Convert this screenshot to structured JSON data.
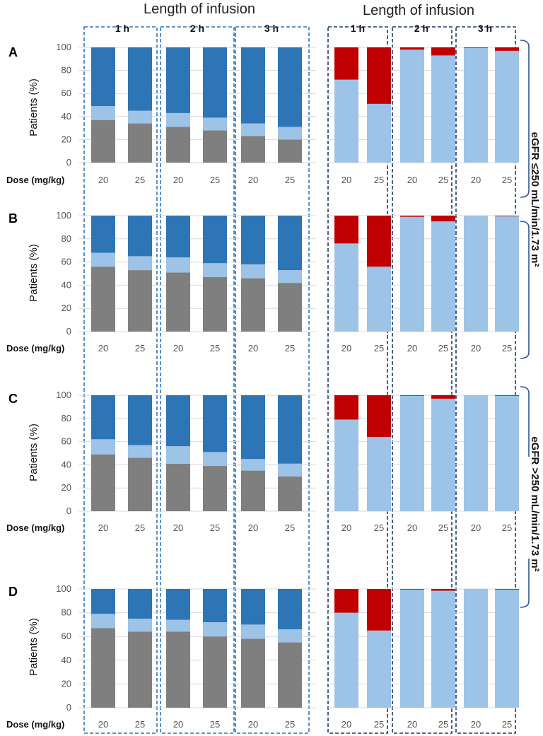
{
  "headings": {
    "left": "Length of infusion",
    "right": "Length of infusion"
  },
  "groups": [
    "1 h",
    "2 h",
    "3 h"
  ],
  "doses": [
    "20",
    "25"
  ],
  "y_label": "Patients (%)",
  "dose_label": "Dose (mg/kg)",
  "y_ticks": [
    "0",
    "20",
    "40",
    "60",
    "80",
    "100"
  ],
  "side_labels": {
    "top": "eGFR ≤250 mL/min/1.73 m²",
    "bottom": "eGFR >250 mL/min/1.73 m²"
  },
  "colors": {
    "gray": "#7f7f7f",
    "light_blue": "#9dc3e6",
    "dark_blue": "#2e75b6",
    "red": "#c00000",
    "box_blue": "#2e75b6",
    "box_dark": "#1f3864",
    "grid": "#d9d9d9"
  },
  "chart_data": [
    {
      "panel": "A",
      "type": "bar",
      "stacked": true,
      "side": "left",
      "categories": [
        "1 h / 20",
        "1 h / 25",
        "2 h / 20",
        "2 h / 25",
        "3 h / 20",
        "3 h / 25"
      ],
      "ylabel": "Patients (%)",
      "xlabel": "Dose (mg/kg)",
      "ylim": [
        0,
        100
      ],
      "series": [
        {
          "name": "gray",
          "color": "#7f7f7f",
          "values": [
            37,
            34,
            31,
            28,
            23,
            20
          ]
        },
        {
          "name": "light blue",
          "color": "#9dc3e6",
          "values": [
            12,
            11,
            12,
            11,
            11,
            11
          ]
        },
        {
          "name": "dark blue",
          "color": "#2e75b6",
          "values": [
            51,
            55,
            57,
            61,
            66,
            69
          ]
        }
      ]
    },
    {
      "panel": "A",
      "type": "bar",
      "stacked": true,
      "side": "right",
      "categories": [
        "1 h / 20",
        "1 h / 25",
        "2 h / 20",
        "2 h / 25",
        "3 h / 20",
        "3 h / 25"
      ],
      "ylabel": "Patients (%)",
      "xlabel": "Dose (mg/kg)",
      "ylim": [
        0,
        100
      ],
      "series": [
        {
          "name": "light blue",
          "color": "#9dc3e6",
          "values": [
            72,
            51,
            98,
            93,
            99.5,
            97
          ]
        },
        {
          "name": "red",
          "color": "#c00000",
          "values": [
            28,
            49,
            2,
            7,
            0.5,
            3
          ]
        }
      ]
    },
    {
      "panel": "B",
      "type": "bar",
      "stacked": true,
      "side": "left",
      "categories": [
        "1 h / 20",
        "1 h / 25",
        "2 h / 20",
        "2 h / 25",
        "3 h / 20",
        "3 h / 25"
      ],
      "ylabel": "Patients (%)",
      "xlabel": "Dose (mg/kg)",
      "ylim": [
        0,
        100
      ],
      "series": [
        {
          "name": "gray",
          "color": "#7f7f7f",
          "values": [
            56,
            53,
            51,
            47,
            46,
            42
          ]
        },
        {
          "name": "light blue",
          "color": "#9dc3e6",
          "values": [
            12,
            12,
            13,
            12,
            12,
            11
          ]
        },
        {
          "name": "dark blue",
          "color": "#2e75b6",
          "values": [
            32,
            35,
            36,
            41,
            42,
            47
          ]
        }
      ]
    },
    {
      "panel": "B",
      "type": "bar",
      "stacked": true,
      "side": "right",
      "categories": [
        "1 h / 20",
        "1 h / 25",
        "2 h / 20",
        "2 h / 25",
        "3 h / 20",
        "3 h / 25"
      ],
      "ylabel": "Patients (%)",
      "xlabel": "Dose (mg/kg)",
      "ylim": [
        0,
        100
      ],
      "series": [
        {
          "name": "light blue",
          "color": "#9dc3e6",
          "values": [
            76,
            56,
            99,
            95,
            100,
            99.5
          ]
        },
        {
          "name": "red",
          "color": "#c00000",
          "values": [
            24,
            44,
            1,
            5,
            0,
            0.5
          ]
        }
      ]
    },
    {
      "panel": "C",
      "type": "bar",
      "stacked": true,
      "side": "left",
      "categories": [
        "1 h / 20",
        "1 h / 25",
        "2 h / 20",
        "2 h / 25",
        "3 h / 20",
        "3 h / 25"
      ],
      "ylabel": "Patients (%)",
      "xlabel": "Dose (mg/kg)",
      "ylim": [
        0,
        100
      ],
      "series": [
        {
          "name": "gray",
          "color": "#7f7f7f",
          "values": [
            49,
            46,
            41,
            39,
            35,
            30
          ]
        },
        {
          "name": "light blue",
          "color": "#9dc3e6",
          "values": [
            13,
            11,
            15,
            12,
            10,
            11
          ]
        },
        {
          "name": "dark blue",
          "color": "#2e75b6",
          "values": [
            38,
            43,
            44,
            49,
            55,
            59
          ]
        }
      ]
    },
    {
      "panel": "C",
      "type": "bar",
      "stacked": true,
      "side": "right",
      "categories": [
        "1 h / 20",
        "1 h / 25",
        "2 h / 20",
        "2 h / 25",
        "3 h / 20",
        "3 h / 25"
      ],
      "ylabel": "Patients (%)",
      "xlabel": "Dose (mg/kg)",
      "ylim": [
        0,
        100
      ],
      "series": [
        {
          "name": "light blue",
          "color": "#9dc3e6",
          "values": [
            79,
            64,
            99.5,
            97,
            100,
            99.5
          ]
        },
        {
          "name": "red",
          "color": "#c00000",
          "values": [
            21,
            36,
            0.5,
            3,
            0,
            0.5
          ]
        }
      ]
    },
    {
      "panel": "D",
      "type": "bar",
      "stacked": true,
      "side": "left",
      "categories": [
        "1 h / 20",
        "1 h / 25",
        "2 h / 20",
        "2 h / 25",
        "3 h / 20",
        "3 h / 25"
      ],
      "ylabel": "Patients (%)",
      "xlabel": "Dose (mg/kg)",
      "ylim": [
        0,
        100
      ],
      "series": [
        {
          "name": "gray",
          "color": "#7f7f7f",
          "values": [
            67,
            64,
            64,
            60,
            58,
            55
          ]
        },
        {
          "name": "light blue",
          "color": "#9dc3e6",
          "values": [
            12,
            11,
            10,
            12,
            12,
            11
          ]
        },
        {
          "name": "dark blue",
          "color": "#2e75b6",
          "values": [
            21,
            25,
            26,
            28,
            30,
            34
          ]
        }
      ]
    },
    {
      "panel": "D",
      "type": "bar",
      "stacked": true,
      "side": "right",
      "categories": [
        "1 h / 20",
        "1 h / 25",
        "2 h / 20",
        "2 h / 25",
        "3 h / 20",
        "3 h / 25"
      ],
      "ylabel": "Patients (%)",
      "xlabel": "Dose (mg/kg)",
      "ylim": [
        0,
        100
      ],
      "series": [
        {
          "name": "light blue",
          "color": "#9dc3e6",
          "values": [
            80,
            65,
            99.5,
            98.5,
            100,
            99.5
          ]
        },
        {
          "name": "red",
          "color": "#c00000",
          "values": [
            20,
            35,
            0.5,
            1.5,
            0,
            0.5
          ]
        }
      ]
    }
  ]
}
